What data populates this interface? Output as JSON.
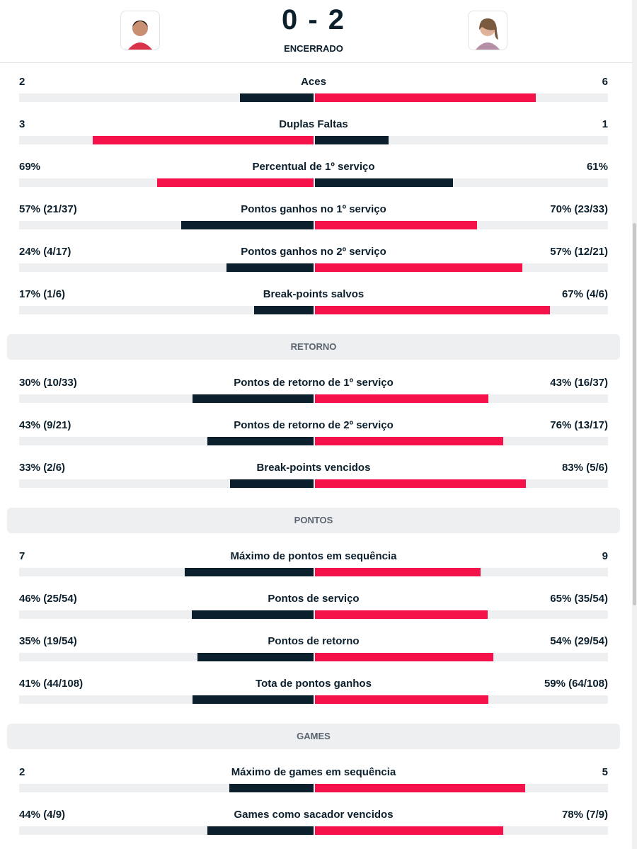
{
  "header": {
    "score": "0 - 2",
    "status": "ENCERRADO"
  },
  "sections": [
    {
      "rows": [
        {
          "label": "Aces",
          "home": "2",
          "away": "6"
        },
        {
          "label": "Duplas Faltas",
          "home": "3",
          "away": "1"
        },
        {
          "label": "Percentual de 1º serviço",
          "home": "69%",
          "away": "61%"
        },
        {
          "label": "Pontos ganhos no 1º serviço",
          "home": "57% (21/37)",
          "away": "70% (23/33)"
        },
        {
          "label": "Pontos ganhos no 2º serviço",
          "home": "24% (4/17)",
          "away": "57% (12/21)"
        },
        {
          "label": "Break-points salvos",
          "home": "17% (1/6)",
          "away": "67% (4/6)"
        }
      ]
    },
    {
      "title": "RETORNO",
      "rows": [
        {
          "label": "Pontos de retorno de 1º serviço",
          "home": "30% (10/33)",
          "away": "43% (16/37)"
        },
        {
          "label": "Pontos de retorno de 2º serviço",
          "home": "43% (9/21)",
          "away": "76% (13/17)"
        },
        {
          "label": "Break-points vencidos",
          "home": "33% (2/6)",
          "away": "83% (5/6)"
        }
      ]
    },
    {
      "title": "PONTOS",
      "rows": [
        {
          "label": "Máximo de pontos em sequência",
          "home": "7",
          "away": "9"
        },
        {
          "label": "Pontos de serviço",
          "home": "46% (25/54)",
          "away": "65% (35/54)"
        },
        {
          "label": "Pontos de retorno",
          "home": "35% (19/54)",
          "away": "54% (29/54)"
        },
        {
          "label": "Tota de pontos ganhos",
          "home": "41% (44/108)",
          "away": "59% (64/108)"
        }
      ]
    },
    {
      "title": "GAMES",
      "rows": [
        {
          "label": "Máximo de games em sequência",
          "home": "2",
          "away": "5"
        },
        {
          "label": "Games como sacador vencidos",
          "home": "44% (4/9)",
          "away": "78% (7/9)"
        }
      ]
    }
  ]
}
